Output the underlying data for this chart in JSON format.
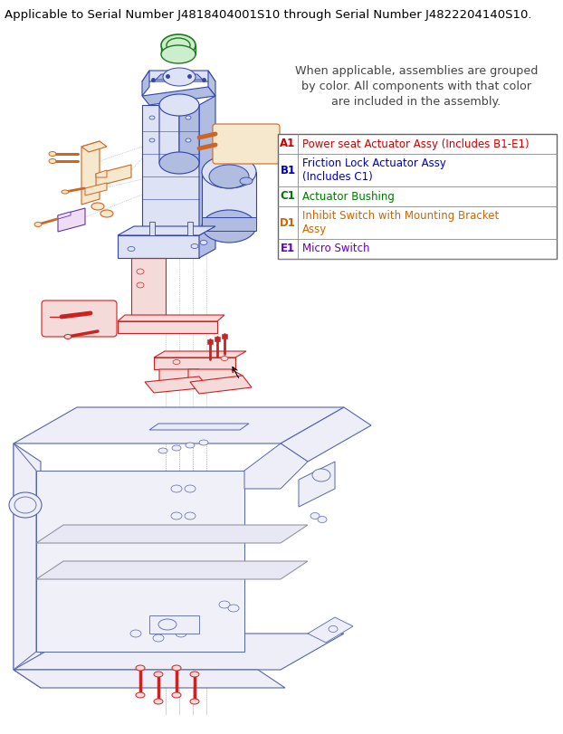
{
  "title": "Applicable to Serial Number J4818404001S10 through Serial Number J4822204140S10.",
  "note": "When applicable, assemblies are grouped\nby color. All components with that color\nare included in the assembly.",
  "rows": [
    {
      "label": "A1",
      "lc": "#cc0000",
      "text": "Power seat Actuator Assy (Includes B1-E1)",
      "tc": "#cc0000",
      "lines": 1
    },
    {
      "label": "B1",
      "lc": "#0000bb",
      "text": "Friction Lock Actuator Assy\n(Includes C1)",
      "tc": "#0000bb",
      "lines": 2
    },
    {
      "label": "C1",
      "lc": "#007700",
      "text": "Actuator Bushing",
      "tc": "#007700",
      "lines": 1
    },
    {
      "label": "D1",
      "lc": "#cc6600",
      "text": "Inhibit Switch with Mounting Bracket\nAssy",
      "tc": "#cc6600",
      "lines": 2
    },
    {
      "label": "E1",
      "lc": "#6600bb",
      "text": "Micro Switch",
      "tc": "#6600bb",
      "lines": 1
    }
  ],
  "blue": "#3344aa",
  "blue_fill": "#dde2f5",
  "blue_med": "#b0bce0",
  "red": "#cc2222",
  "red_fill": "#f5dada",
  "orange": "#cc6622",
  "orange_fill": "#f5e8cc",
  "green": "#227722",
  "green_fill": "#cceecc",
  "purple": "#6633aa",
  "purple_fill": "#eeddf5",
  "gray": "#5566aa",
  "gray_fill": "#eeeef8",
  "gray2": "#888899"
}
